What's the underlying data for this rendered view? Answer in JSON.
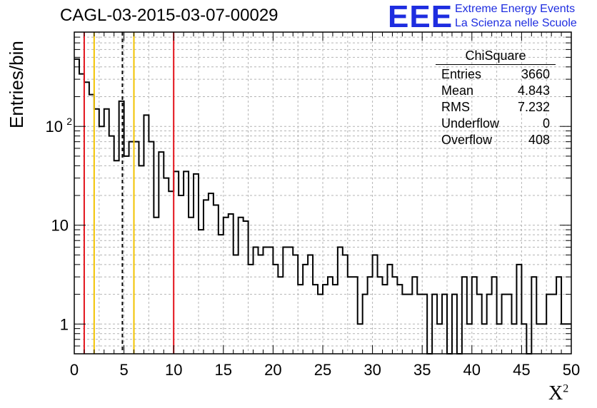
{
  "chart_data": {
    "type": "histogram",
    "title": "CAGL-03-2015-03-07-00029",
    "xlabel": "X",
    "xlabel_sup": "2",
    "ylabel": "Entries/bin",
    "xlim": [
      0,
      50
    ],
    "ylim": [
      0.5,
      900
    ],
    "yscale": "log",
    "grid": true,
    "x_ticks": [
      "0",
      "5",
      "10",
      "15",
      "20",
      "25",
      "30",
      "35",
      "40",
      "45",
      "50"
    ],
    "y_ticks": [
      {
        "value": 1,
        "label": "1"
      },
      {
        "value": 10,
        "label": "10"
      },
      {
        "value": 100,
        "label": "10",
        "sup": "2"
      }
    ],
    "bin_width": 0.5,
    "counts": [
      480,
      340,
      280,
      210,
      150,
      100,
      150,
      80,
      45,
      180,
      50,
      70,
      70,
      40,
      130,
      70,
      12,
      55,
      30,
      22,
      35,
      20,
      35,
      12,
      33,
      9,
      18,
      21,
      16,
      8,
      12,
      13,
      5,
      12,
      11,
      4,
      6,
      5,
      6,
      6,
      4,
      3,
      6,
      6,
      5,
      2.5,
      4,
      5,
      2.5,
      2,
      2.5,
      3,
      2.5,
      6,
      5,
      3,
      3,
      1,
      2,
      3,
      5,
      3,
      2.5,
      4,
      3,
      2.5,
      2,
      2,
      3,
      2,
      2,
      0,
      2,
      1,
      2,
      0,
      2,
      0,
      3,
      1,
      3,
      2,
      1,
      2,
      3,
      1,
      2,
      2,
      1,
      4,
      1,
      0,
      3,
      1,
      1,
      2,
      2,
      3,
      1,
      1
    ],
    "vertical_lines": [
      {
        "x": 1,
        "color": "#e3121b",
        "style": "solid"
      },
      {
        "x": 2,
        "color": "#f2c300",
        "style": "solid"
      },
      {
        "x": 4.843,
        "color": "#000000",
        "style": "dashed"
      },
      {
        "x": 6,
        "color": "#f2c300",
        "style": "solid"
      },
      {
        "x": 10,
        "color": "#e3121b",
        "style": "solid"
      }
    ]
  },
  "stats": {
    "title": "ChiSquare",
    "rows": [
      {
        "label": "Entries",
        "value": "3660"
      },
      {
        "label": "Mean",
        "value": "4.843"
      },
      {
        "label": "RMS",
        "value": "7.232"
      },
      {
        "label": "Underflow",
        "value": "0"
      },
      {
        "label": "Overflow",
        "value": "408"
      }
    ]
  },
  "logo": {
    "mark": "EEE",
    "line1": "Extreme Energy Events",
    "line2": "La Scienza nelle Scuole"
  }
}
